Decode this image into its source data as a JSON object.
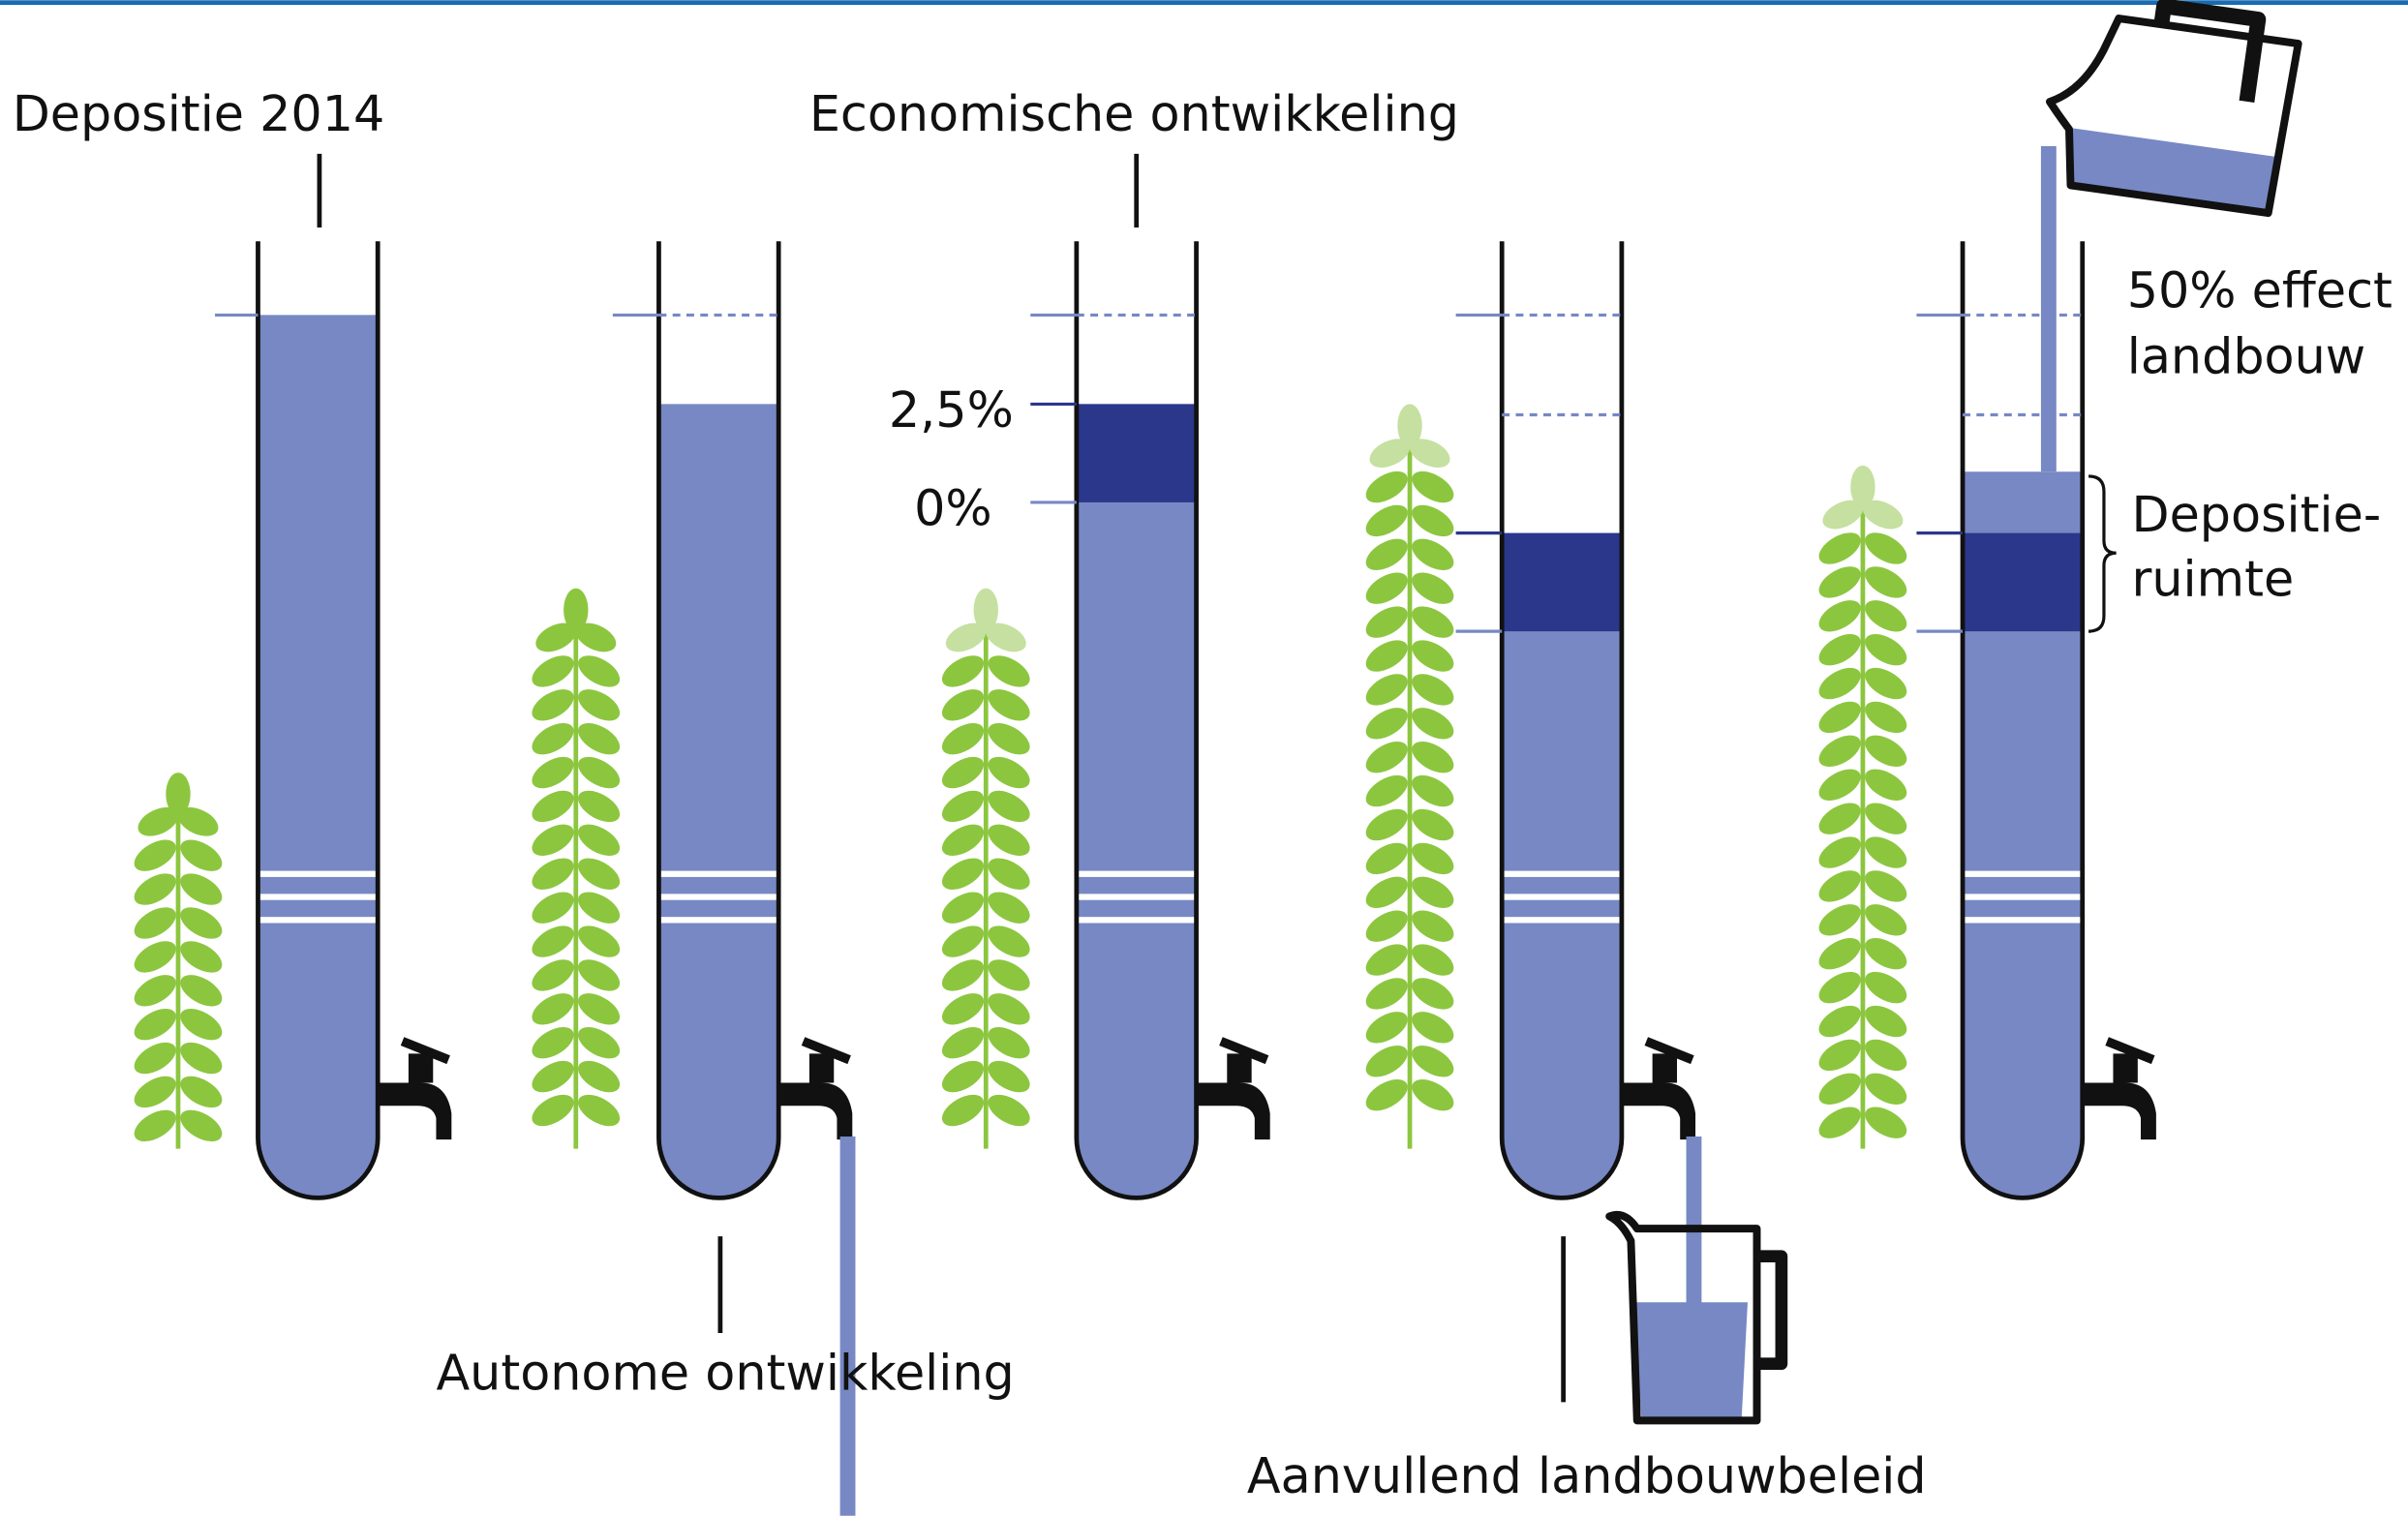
{
  "labels": {
    "depositie_2014": "Depositie 2014",
    "economische_ontwikkeling": "Economische ontwikkeling",
    "autonome_ontwikkeling": "Autonome ontwikkeling",
    "aanvullend_landbouwbeleid": "Aanvullend landbouwbeleid",
    "pct_high": "2,5%",
    "pct_low": "0%",
    "effect_landbouw": [
      "50% effect",
      "landbouw"
    ],
    "depositieruimte": [
      "Depositie-",
      "ruimte"
    ]
  }
}
